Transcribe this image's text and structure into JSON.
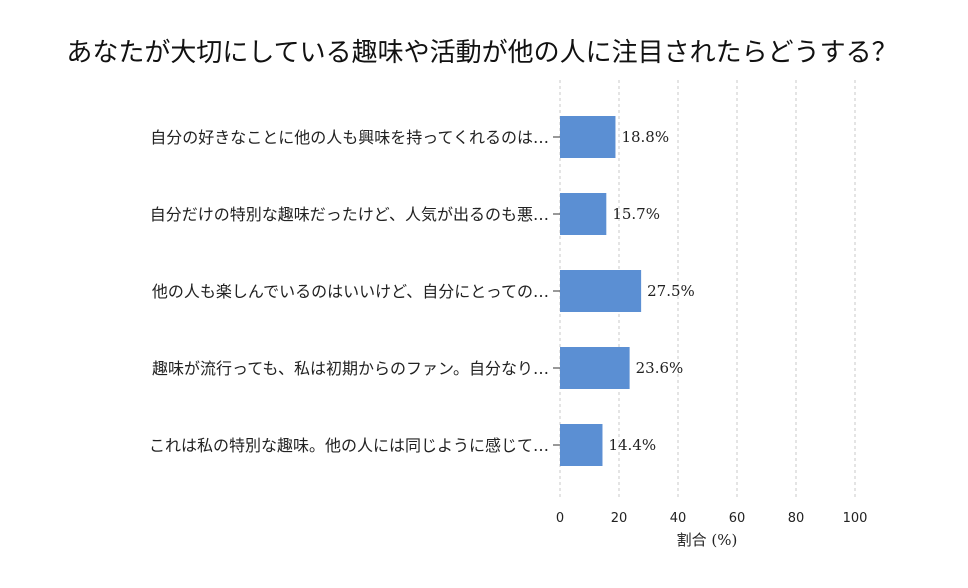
{
  "chart_data": {
    "type": "bar",
    "orientation": "horizontal",
    "title": "あなたが大切にしている趣味や活動が他の人に注目されたらどうする？",
    "categories": [
      "自分の好きなことに他の人も興味を持ってくれるのは…",
      "自分だけの特別な趣味だったけど、人気が出るのも悪…",
      "他の人も楽しんでいるのはいいけど、自分にとっての…",
      "趣味が流行っても、私は初期からのファン。自分なり…",
      "これは私の特別な趣味。他の人には同じように感じて…"
    ],
    "values": [
      18.8,
      15.7,
      27.5,
      23.6,
      14.4
    ],
    "value_labels": [
      "18.8%",
      "15.7%",
      "27.5%",
      "23.6%",
      "14.4%"
    ],
    "xlabel": "割合 (%)",
    "ylabel": "",
    "xlim": [
      0,
      100
    ],
    "xticks": [
      0,
      20,
      40,
      60,
      80,
      100
    ],
    "grid": true,
    "bar_color": "#5b8fd3"
  }
}
